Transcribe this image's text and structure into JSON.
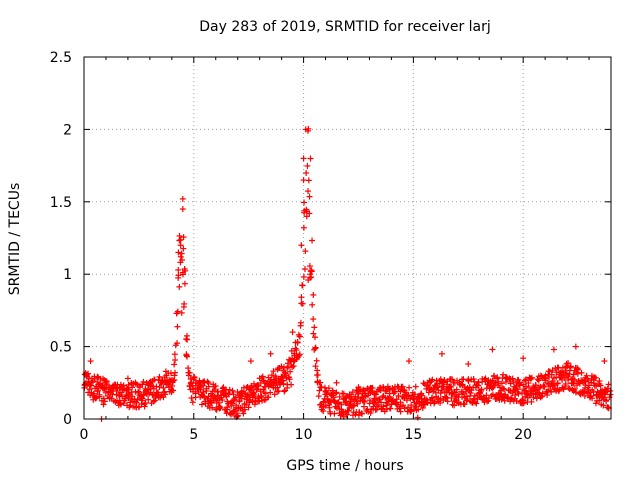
{
  "chart_data": {
    "type": "scatter",
    "title": "Day 283 of 2019, SRMTID for receiver larj",
    "xlabel": "GPS time / hours",
    "ylabel": "SRMTID / TECUs",
    "xlim": [
      0,
      24
    ],
    "ylim": [
      0,
      2.5
    ],
    "x_ticks": [
      0,
      5,
      10,
      15,
      20
    ],
    "y_ticks": [
      0,
      0.5,
      1,
      1.5,
      2,
      2.5
    ],
    "x_tick_labels": [
      "0",
      "5",
      "10",
      "15",
      "20"
    ],
    "y_tick_labels": [
      "0",
      "0.5",
      "1",
      "1.5",
      "2",
      "2.5"
    ],
    "grid": true,
    "marker": "+",
    "color": "#ff0000",
    "series": [
      {
        "name": "SRMTID",
        "sample_step_hours": 0.05,
        "baseline": [
          [
            0,
            0.25
          ],
          [
            1,
            0.18
          ],
          [
            2,
            0.16
          ],
          [
            3,
            0.17
          ],
          [
            3.8,
            0.25
          ],
          [
            5,
            0.2
          ],
          [
            6,
            0.15
          ],
          [
            7,
            0.1
          ],
          [
            8,
            0.2
          ],
          [
            9,
            0.28
          ],
          [
            11,
            0.13
          ],
          [
            12,
            0.1
          ],
          [
            13,
            0.13
          ],
          [
            14,
            0.14
          ],
          [
            15,
            0.14
          ],
          [
            16,
            0.2
          ],
          [
            17,
            0.18
          ],
          [
            18,
            0.2
          ],
          [
            19,
            0.22
          ],
          [
            20,
            0.18
          ],
          [
            21,
            0.25
          ],
          [
            22,
            0.3
          ],
          [
            23,
            0.22
          ],
          [
            24,
            0.15
          ]
        ],
        "peaks": [
          {
            "center": 4.45,
            "width": 0.22,
            "height": 1.05
          },
          {
            "center": 10.2,
            "width": 0.28,
            "height": 1.5
          },
          {
            "center": 9.6,
            "width": 0.25,
            "height": 0.2
          }
        ],
        "jitter": 0.09,
        "noted_points": [
          [
            4.5,
            1.52
          ],
          [
            4.5,
            1.45
          ],
          [
            10.1,
            2.0
          ],
          [
            10.2,
            1.99
          ],
          [
            10.0,
            1.8
          ],
          [
            10.0,
            1.65
          ],
          [
            4.4,
            1.2
          ],
          [
            4.3,
            1.15
          ],
          [
            10.3,
            1.0
          ],
          [
            9.9,
            1.2
          ],
          [
            0.8,
            0.0
          ],
          [
            7.0,
            0.02
          ],
          [
            15.2,
            0.01
          ],
          [
            0.3,
            0.4
          ],
          [
            1.0,
            0.25
          ],
          [
            2.0,
            0.28
          ],
          [
            8.5,
            0.45
          ],
          [
            7.6,
            0.4
          ],
          [
            9.5,
            0.6
          ],
          [
            11.5,
            0.25
          ],
          [
            14.8,
            0.4
          ],
          [
            16.3,
            0.45
          ],
          [
            18.6,
            0.48
          ],
          [
            20.0,
            0.42
          ],
          [
            21.4,
            0.48
          ],
          [
            22.4,
            0.5
          ],
          [
            23.7,
            0.4
          ],
          [
            12.5,
            0.22
          ],
          [
            17.5,
            0.38
          ]
        ]
      }
    ]
  }
}
